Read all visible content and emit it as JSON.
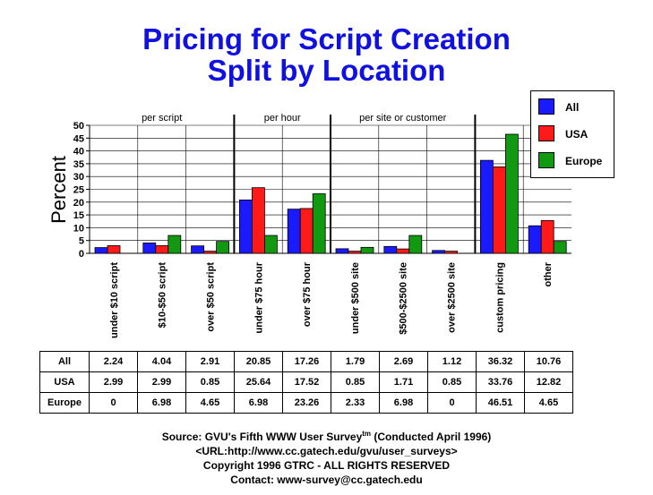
{
  "header": {
    "title_line1": "Pricing for Script Creation",
    "title_line2": "Split by Location"
  },
  "chart_data": {
    "type": "bar",
    "ylabel": "Percent",
    "ylim": [
      0,
      50
    ],
    "yticks": [
      0,
      5,
      10,
      15,
      20,
      25,
      30,
      35,
      40,
      45,
      50
    ],
    "grid": true,
    "legend_position": "top-right",
    "categories": [
      "under $10 script",
      "$10-$50 script",
      "over $50 script",
      "under $75 hour",
      "over $75 hour",
      "under $500 site",
      "$500-$2500 site",
      "over $2500 site",
      "custom pricing",
      "other"
    ],
    "groups": [
      {
        "label": "per script",
        "start": 0,
        "end": 2
      },
      {
        "label": "per hour",
        "start": 3,
        "end": 4
      },
      {
        "label": "per site or customer",
        "start": 5,
        "end": 7
      }
    ],
    "series": [
      {
        "name": "All",
        "color": "#1a1aff",
        "values": [
          2.24,
          4.04,
          2.91,
          20.85,
          17.26,
          1.79,
          2.69,
          1.12,
          36.32,
          10.76
        ]
      },
      {
        "name": "USA",
        "color": "#ff1a1a",
        "values": [
          2.99,
          2.99,
          0.85,
          25.64,
          17.52,
          0.85,
          1.71,
          0.85,
          33.76,
          12.82
        ]
      },
      {
        "name": "Europe",
        "color": "#119911",
        "values": [
          0,
          6.98,
          4.65,
          6.98,
          23.26,
          2.33,
          6.98,
          0,
          46.51,
          4.65
        ]
      }
    ],
    "table_values": [
      [
        "2.24",
        "4.04",
        "2.91",
        "20.85",
        "17.26",
        "1.79",
        "2.69",
        "1.12",
        "36.32",
        "10.76"
      ],
      [
        "2.99",
        "2.99",
        "0.85",
        "25.64",
        "17.52",
        "0.85",
        "1.71",
        "0.85",
        "33.76",
        "12.82"
      ],
      [
        "0",
        "6.98",
        "4.65",
        "6.98",
        "23.26",
        "2.33",
        "6.98",
        "0",
        "46.51",
        "4.65"
      ]
    ]
  },
  "footer": {
    "source": "Source: GVU's Fifth WWW User Survey",
    "tm": "tm",
    "conducted": " (Conducted April 1996)",
    "url": "<URL:http://www.cc.gatech.edu/gvu/user_surveys>",
    "copyright": "Copyright 1996 GTRC -  ALL RIGHTS RESERVED",
    "contact": "Contact: www-survey@cc.gatech.edu"
  }
}
